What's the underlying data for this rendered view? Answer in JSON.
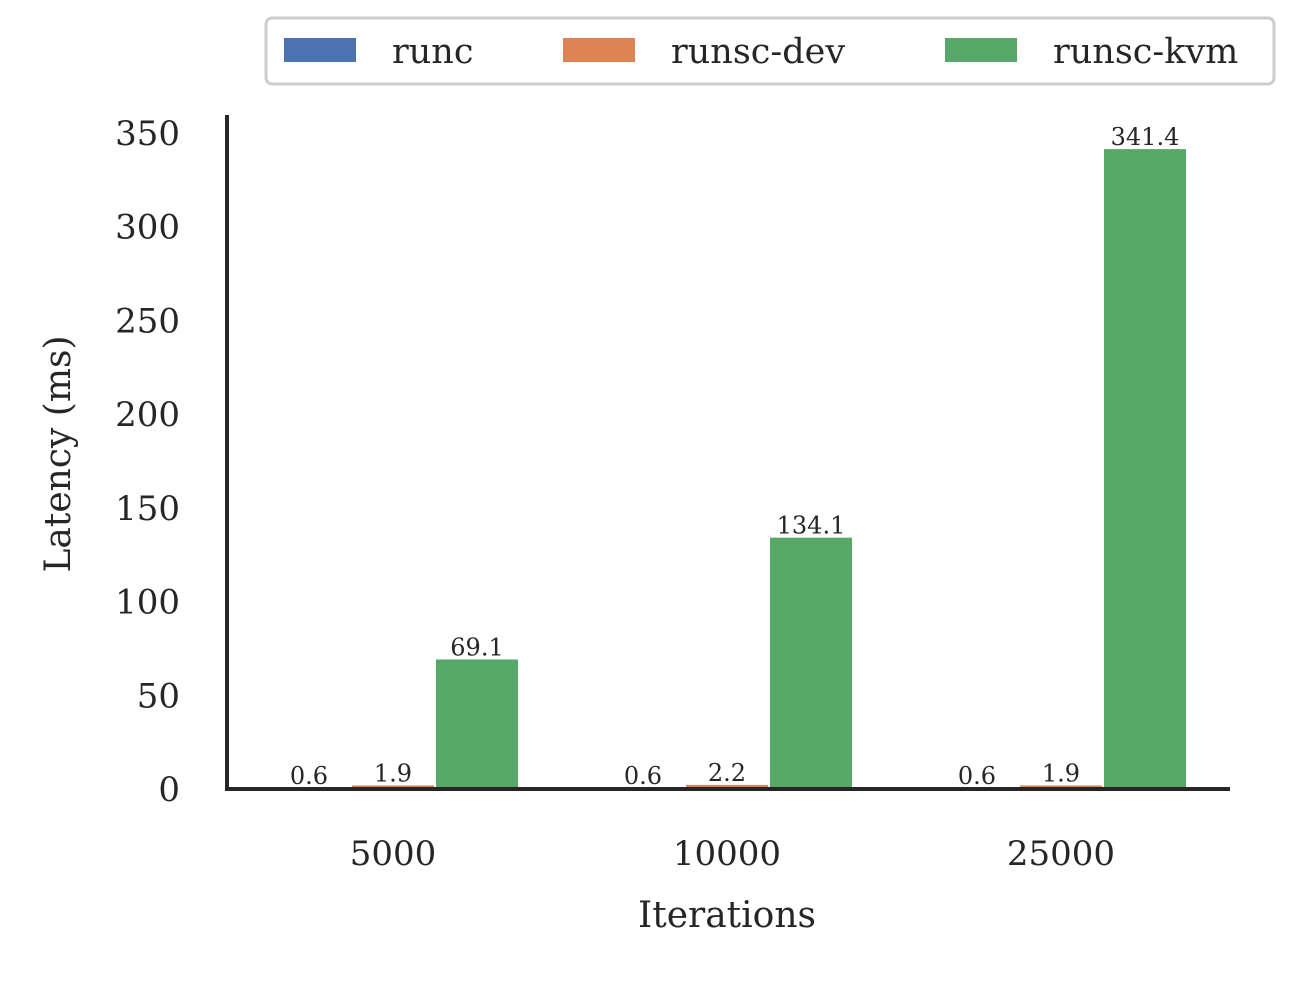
{
  "chart_data": {
    "type": "bar",
    "categories": [
      "5000",
      "10000",
      "25000"
    ],
    "series": [
      {
        "name": "runc",
        "values": [
          0.6,
          0.6,
          0.6
        ],
        "color": "#4c72b0"
      },
      {
        "name": "runsc-dev",
        "values": [
          1.9,
          2.2,
          1.9
        ],
        "color": "#dd8452"
      },
      {
        "name": "runsc-kvm",
        "values": [
          69.1,
          134.1,
          341.4
        ],
        "color": "#55a868"
      }
    ],
    "data_labels": [
      [
        "0.6",
        "0.6",
        "0.6"
      ],
      [
        "1.9",
        "2.2",
        "1.9"
      ],
      [
        "69.1",
        "134.1",
        "341.4"
      ]
    ],
    "xlabel": "Iterations",
    "ylabel": "Latency (ms)",
    "ylim": [
      0,
      360
    ],
    "yticks": [
      0,
      50,
      100,
      150,
      200,
      250,
      300,
      350
    ],
    "grid": false,
    "legend_position": "top"
  }
}
